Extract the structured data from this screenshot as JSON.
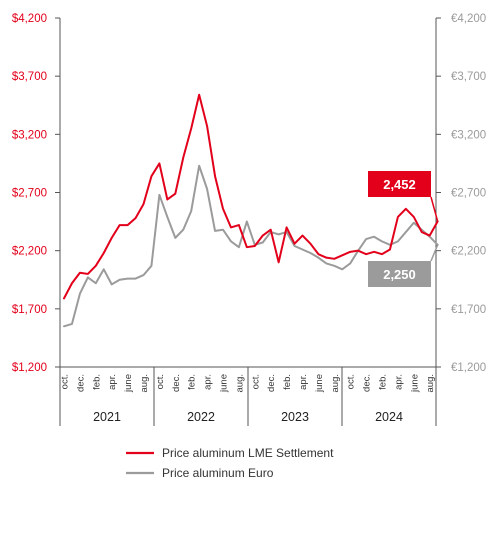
{
  "chart_data": {
    "type": "line",
    "colors": {
      "usd": "#e3001b",
      "eur": "#9b9b9b",
      "axis_usd": "#e3001b",
      "axis_eur": "#9b9b9b",
      "axis_line": "#555555"
    },
    "y_left": {
      "range": [
        1200,
        4200
      ],
      "ticks": [
        1200,
        1700,
        2200,
        2700,
        3200,
        3700,
        4200
      ],
      "tick_labels": [
        "$1,200",
        "$1,700",
        "$2,200",
        "$2,700",
        "$3,200",
        "$3,700",
        "$4,200"
      ]
    },
    "y_right": {
      "range": [
        1200,
        4200
      ],
      "ticks": [
        1200,
        1700,
        2200,
        2700,
        3200,
        3700,
        4200
      ],
      "tick_labels": [
        "€1,200",
        "€1,700",
        "€2,200",
        "€2,700",
        "€3,200",
        "€3,700",
        "€4,200"
      ]
    },
    "x_month_labels": [
      {
        "month_index": 0,
        "label": "oct."
      },
      {
        "month_index": 2,
        "label": "dec."
      },
      {
        "month_index": 4,
        "label": "feb."
      },
      {
        "month_index": 6,
        "label": "apr."
      },
      {
        "month_index": 8,
        "label": "june"
      },
      {
        "month_index": 10,
        "label": "aug."
      },
      {
        "month_index": 12,
        "label": "oct."
      },
      {
        "month_index": 14,
        "label": "dec."
      },
      {
        "month_index": 16,
        "label": "feb."
      },
      {
        "month_index": 18,
        "label": "apr."
      },
      {
        "month_index": 20,
        "label": "june"
      },
      {
        "month_index": 22,
        "label": "aug."
      },
      {
        "month_index": 24,
        "label": "oct."
      },
      {
        "month_index": 26,
        "label": "dec."
      },
      {
        "month_index": 28,
        "label": "feb."
      },
      {
        "month_index": 30,
        "label": "apr."
      },
      {
        "month_index": 32,
        "label": "june"
      },
      {
        "month_index": 34,
        "label": "aug."
      },
      {
        "month_index": 36,
        "label": "oct."
      },
      {
        "month_index": 38,
        "label": "dec."
      },
      {
        "month_index": 40,
        "label": "feb."
      },
      {
        "month_index": 42,
        "label": "apr."
      },
      {
        "month_index": 44,
        "label": "june"
      },
      {
        "month_index": 46,
        "label": "aug."
      }
    ],
    "x_years": [
      {
        "label": "2021",
        "start_index": 0,
        "end_index": 12
      },
      {
        "label": "2022",
        "start_index": 12,
        "end_index": 24
      },
      {
        "label": "2023",
        "start_index": 24,
        "end_index": 36
      },
      {
        "label": "2024",
        "start_index": 36,
        "end_index": 48
      }
    ],
    "series": [
      {
        "name": "Price aluminum LME Settlement",
        "key": "usd",
        "points": [
          [
            0,
            1790
          ],
          [
            1,
            1920
          ],
          [
            2,
            2010
          ],
          [
            3,
            2000
          ],
          [
            4,
            2070
          ],
          [
            5,
            2180
          ],
          [
            6,
            2310
          ],
          [
            7,
            2420
          ],
          [
            8,
            2420
          ],
          [
            9,
            2480
          ],
          [
            10,
            2600
          ],
          [
            11,
            2840
          ],
          [
            12,
            2950
          ],
          [
            13,
            2640
          ],
          [
            14,
            2690
          ],
          [
            15,
            3000
          ],
          [
            16,
            3250
          ],
          [
            17,
            3540
          ],
          [
            18,
            3270
          ],
          [
            19,
            2840
          ],
          [
            20,
            2560
          ],
          [
            21,
            2400
          ],
          [
            22,
            2420
          ],
          [
            23,
            2230
          ],
          [
            24,
            2240
          ],
          [
            25,
            2330
          ],
          [
            26,
            2380
          ],
          [
            27,
            2100
          ],
          [
            28,
            2400
          ],
          [
            29,
            2260
          ],
          [
            30,
            2330
          ],
          [
            31,
            2260
          ],
          [
            32,
            2170
          ],
          [
            33,
            2140
          ],
          [
            34,
            2130
          ],
          [
            35,
            2160
          ],
          [
            36,
            2190
          ],
          [
            37,
            2200
          ],
          [
            38,
            2170
          ],
          [
            39,
            2190
          ],
          [
            40,
            2170
          ],
          [
            41,
            2210
          ],
          [
            42,
            2490
          ],
          [
            43,
            2560
          ],
          [
            44,
            2490
          ],
          [
            45,
            2360
          ],
          [
            46,
            2330
          ],
          [
            47,
            2452
          ]
        ]
      },
      {
        "name": "Price aluminum Euro",
        "key": "eur",
        "points": [
          [
            0,
            1550
          ],
          [
            1,
            1570
          ],
          [
            2,
            1830
          ],
          [
            3,
            1970
          ],
          [
            4,
            1920
          ],
          [
            5,
            2040
          ],
          [
            6,
            1910
          ],
          [
            7,
            1950
          ],
          [
            8,
            1960
          ],
          [
            9,
            1960
          ],
          [
            10,
            1990
          ],
          [
            11,
            2070
          ],
          [
            12,
            2680
          ],
          [
            13,
            2490
          ],
          [
            14,
            2310
          ],
          [
            15,
            2380
          ],
          [
            16,
            2540
          ],
          [
            17,
            2930
          ],
          [
            18,
            2730
          ],
          [
            19,
            2370
          ],
          [
            20,
            2380
          ],
          [
            21,
            2280
          ],
          [
            22,
            2230
          ],
          [
            23,
            2450
          ],
          [
            24,
            2250
          ],
          [
            25,
            2270
          ],
          [
            26,
            2360
          ],
          [
            27,
            2340
          ],
          [
            28,
            2360
          ],
          [
            29,
            2240
          ],
          [
            30,
            2210
          ],
          [
            31,
            2180
          ],
          [
            32,
            2140
          ],
          [
            33,
            2090
          ],
          [
            34,
            2070
          ],
          [
            35,
            2040
          ],
          [
            36,
            2090
          ],
          [
            37,
            2200
          ],
          [
            38,
            2300
          ],
          [
            39,
            2320
          ],
          [
            40,
            2280
          ],
          [
            41,
            2250
          ],
          [
            42,
            2280
          ],
          [
            43,
            2360
          ],
          [
            44,
            2440
          ],
          [
            45,
            2380
          ],
          [
            46,
            2320
          ],
          [
            47,
            2250
          ]
        ]
      }
    ],
    "value_labels": [
      {
        "series": "usd",
        "text": "2,452"
      },
      {
        "series": "eur",
        "text": "2,250"
      }
    ],
    "legend": {
      "placement": "bottom",
      "items": [
        {
          "series": "usd",
          "label": "Price aluminum LME Settlement"
        },
        {
          "series": "eur",
          "label": "Price aluminum Euro"
        }
      ]
    },
    "grid": false
  }
}
